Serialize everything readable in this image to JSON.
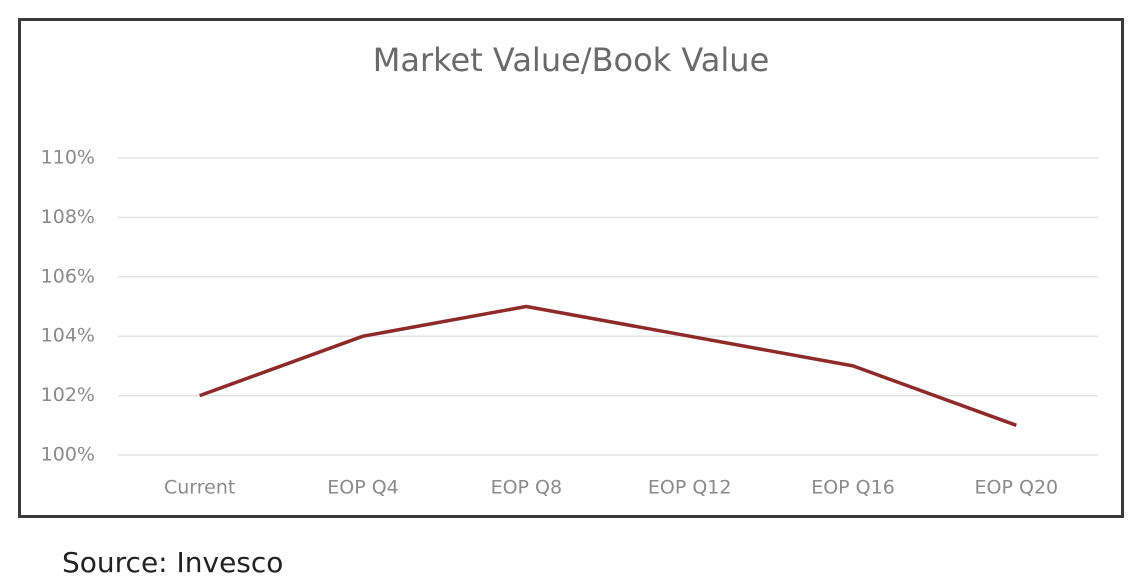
{
  "chart_data": {
    "type": "line",
    "title": "Market Value/Book Value",
    "categories": [
      "Current",
      "EOP Q4",
      "EOP Q8",
      "EOP Q12",
      "EOP Q16",
      "EOP Q20"
    ],
    "values": [
      102,
      104,
      105,
      104,
      103,
      101
    ],
    "color": "#8e2a2a",
    "ylim": [
      100,
      110
    ],
    "yticks": [
      {
        "value": 100,
        "label": "100%"
      },
      {
        "value": 102,
        "label": "102%"
      },
      {
        "value": 104,
        "label": "104%"
      },
      {
        "value": 106,
        "label": "106%"
      },
      {
        "value": 108,
        "label": "108%"
      },
      {
        "value": 110,
        "label": "110%"
      }
    ],
    "grid": true
  },
  "source": "Source: Invesco"
}
